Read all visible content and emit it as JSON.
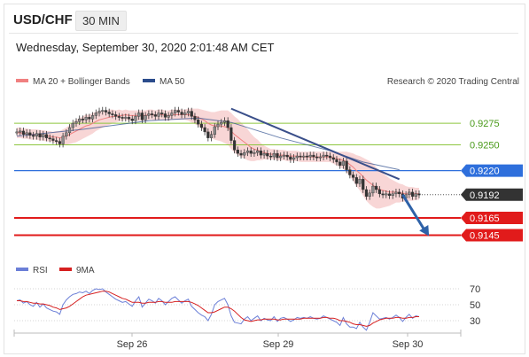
{
  "header": {
    "pair": "USD/CHF",
    "timeframe": "30 MIN",
    "datetime": "Wednesday, September 30, 2020 2:01:48 AM CET"
  },
  "legend": {
    "ma20": "MA 20 + Bollinger Bands",
    "ma50": "MA 50",
    "copyright": "Research © 2020 Trading Central",
    "rsi": "RSI",
    "ma9": "9MA"
  },
  "colors": {
    "support": "#e11b1b",
    "resistance": "#2e6fdc",
    "minor": "#8dc63f",
    "price": "#333333",
    "ma20": "#f08080",
    "ma50": "#2b4c8c",
    "band": "#f6c8c8",
    "trend": "#3a4f8a",
    "arrow": "#2e62a8",
    "rsi": "#6b7fd7",
    "ma9": "#d62020"
  },
  "chart_data": {
    "type": "line",
    "x_ticks": [
      "Sep 26",
      "Sep 29",
      "Sep 30"
    ],
    "price_range": [
      0.9128,
      0.9305
    ],
    "levels": [
      {
        "value": 0.9275,
        "label": "0.9275",
        "style": "minor-green"
      },
      {
        "value": 0.925,
        "label": "0.9250",
        "style": "minor-green"
      },
      {
        "value": 0.922,
        "label": "0.9220",
        "style": "resistance"
      },
      {
        "value": 0.9192,
        "label": "0.9192",
        "style": "current"
      },
      {
        "value": 0.9165,
        "label": "0.9165",
        "style": "support"
      },
      {
        "value": 0.9145,
        "label": "0.9145",
        "style": "support"
      }
    ],
    "price": [
      0.9265,
      0.9266,
      0.9262,
      0.9264,
      0.9261,
      0.926,
      0.9263,
      0.9259,
      0.9262,
      0.9258,
      0.9257,
      0.9255,
      0.9254,
      0.9251,
      0.926,
      0.9264,
      0.927,
      0.9275,
      0.9277,
      0.928,
      0.9279,
      0.9282,
      0.928,
      0.9284,
      0.9287,
      0.9289,
      0.929,
      0.9288,
      0.9286,
      0.9285,
      0.9283,
      0.9282,
      0.9281,
      0.9282,
      0.928,
      0.9278,
      0.9283,
      0.9287,
      0.9279,
      0.9284,
      0.9286,
      0.9285,
      0.9283,
      0.9287,
      0.9286,
      0.9282,
      0.9284,
      0.9287,
      0.929,
      0.9288,
      0.9285,
      0.9287,
      0.9289,
      0.9283,
      0.9279,
      0.9274,
      0.927,
      0.9265,
      0.9258,
      0.9262,
      0.9271,
      0.9274,
      0.9276,
      0.9278,
      0.927,
      0.9255,
      0.9244,
      0.924,
      0.9238,
      0.9241,
      0.9243,
      0.924,
      0.9241,
      0.9243,
      0.9238,
      0.924,
      0.9237,
      0.9236,
      0.924,
      0.9235,
      0.9237,
      0.9238,
      0.9236,
      0.9233,
      0.9235,
      0.9237,
      0.9236,
      0.9237,
      0.9236,
      0.9238,
      0.9236,
      0.9235,
      0.9236,
      0.9238,
      0.9237,
      0.9235,
      0.9233,
      0.923,
      0.9226,
      0.9231,
      0.9221,
      0.9215,
      0.9212,
      0.9205,
      0.921,
      0.9198,
      0.919,
      0.9194,
      0.9202,
      0.9198,
      0.9193,
      0.9192,
      0.9193,
      0.9191,
      0.9193,
      0.9195,
      0.9193,
      0.9188,
      0.9192,
      0.9195,
      0.919,
      0.9193,
      0.9192
    ],
    "ma20": [
      0.9264,
      0.9264,
      0.9263,
      0.9263,
      0.9262,
      0.9262,
      0.9262,
      0.9261,
      0.9261,
      0.926,
      0.926,
      0.9259,
      0.9259,
      0.9258,
      0.9259,
      0.926,
      0.9262,
      0.9264,
      0.9266,
      0.9268,
      0.927,
      0.9272,
      0.9273,
      0.9275,
      0.9277,
      0.9279,
      0.928,
      0.9281,
      0.9282,
      0.9283,
      0.9283,
      0.9284,
      0.9284,
      0.9285,
      0.9284,
      0.9284,
      0.9284,
      0.9284,
      0.9284,
      0.9284,
      0.9285,
      0.9285,
      0.9284,
      0.9285,
      0.9285,
      0.9284,
      0.9284,
      0.9285,
      0.9285,
      0.9285,
      0.9285,
      0.9285,
      0.9285,
      0.9284,
      0.9283,
      0.9282,
      0.928,
      0.9278,
      0.9275,
      0.9273,
      0.9272,
      0.9272,
      0.9272,
      0.9271,
      0.927,
      0.9266,
      0.9262,
      0.9259,
      0.9256,
      0.9253,
      0.925,
      0.9247,
      0.9245,
      0.9244,
      0.9242,
      0.9241,
      0.924,
      0.9239,
      0.9239,
      0.9238,
      0.9238,
      0.9238,
      0.9237,
      0.9237,
      0.9237,
      0.9237,
      0.9236,
      0.9236,
      0.9236,
      0.9236,
      0.9236,
      0.9236,
      0.9236,
      0.9236,
      0.9236,
      0.9236,
      0.9235,
      0.9234,
      0.9233,
      0.9232,
      0.923,
      0.9227,
      0.9224,
      0.922,
      0.9217,
      0.9213,
      0.9209,
      0.9206,
      0.9203,
      0.92,
      0.9198,
      0.9197,
      0.9196,
      0.9195,
      0.9195,
      0.9195,
      0.9194,
      0.9194,
      0.9193,
      0.9193,
      0.9193,
      0.9193,
      0.9193
    ],
    "band_width": [
      0.0006,
      0.0006,
      0.0006,
      0.0006,
      0.0006,
      0.0006,
      0.0006,
      0.0006,
      0.0006,
      0.0006,
      0.0006,
      0.0006,
      0.0007,
      0.0008,
      0.0009,
      0.001,
      0.0011,
      0.0012,
      0.0013,
      0.0013,
      0.0013,
      0.0013,
      0.0012,
      0.0012,
      0.0011,
      0.0011,
      0.001,
      0.0009,
      0.0009,
      0.0008,
      0.0007,
      0.0007,
      0.0006,
      0.0006,
      0.0006,
      0.0006,
      0.0006,
      0.0006,
      0.0006,
      0.0006,
      0.0006,
      0.0006,
      0.0006,
      0.0006,
      0.0006,
      0.0006,
      0.0006,
      0.0006,
      0.0006,
      0.0006,
      0.0006,
      0.0006,
      0.0007,
      0.0008,
      0.0009,
      0.001,
      0.0011,
      0.0012,
      0.0014,
      0.0015,
      0.0016,
      0.0017,
      0.0018,
      0.0019,
      0.002,
      0.0021,
      0.0021,
      0.0021,
      0.002,
      0.0019,
      0.0018,
      0.0016,
      0.0014,
      0.0012,
      0.001,
      0.0008,
      0.0007,
      0.0006,
      0.0006,
      0.0006,
      0.0006,
      0.0006,
      0.0006,
      0.0006,
      0.0006,
      0.0006,
      0.0006,
      0.0006,
      0.0006,
      0.0006,
      0.0006,
      0.0006,
      0.0006,
      0.0006,
      0.0006,
      0.0006,
      0.0007,
      0.0008,
      0.0009,
      0.001,
      0.0012,
      0.0014,
      0.0016,
      0.0018,
      0.002,
      0.0022,
      0.0024,
      0.0025,
      0.0025,
      0.0024,
      0.0022,
      0.002,
      0.0018,
      0.0016,
      0.0014,
      0.0012,
      0.0011,
      0.001,
      0.0009,
      0.0008,
      0.0008,
      0.0007,
      0.0007
    ],
    "ma50": [
      [
        0,
        0.926
      ],
      [
        20,
        0.9268
      ],
      [
        40,
        0.9278
      ],
      [
        55,
        0.9281
      ],
      [
        65,
        0.9276
      ],
      [
        80,
        0.9258
      ],
      [
        95,
        0.9243
      ],
      [
        105,
        0.923
      ],
      [
        116,
        0.9221
      ]
    ],
    "trendline": [
      [
        65,
        0.9292
      ],
      [
        116,
        0.921
      ]
    ],
    "arrow": {
      "from": [
        117,
        0.9192
      ],
      "to": [
        125,
        0.9144
      ]
    },
    "rsi": {
      "ylabels": [
        "70",
        "50",
        "30"
      ],
      "range": [
        15,
        85
      ],
      "values": [
        55,
        56,
        52,
        54,
        50,
        48,
        53,
        47,
        51,
        46,
        44,
        42,
        41,
        38,
        50,
        56,
        60,
        63,
        64,
        66,
        65,
        67,
        64,
        68,
        70,
        69,
        70,
        66,
        63,
        60,
        57,
        55,
        53,
        54,
        51,
        48,
        55,
        60,
        47,
        52,
        57,
        55,
        52,
        58,
        55,
        50,
        54,
        58,
        60,
        56,
        52,
        55,
        57,
        48,
        44,
        40,
        37,
        35,
        30,
        38,
        50,
        54,
        56,
        58,
        50,
        36,
        28,
        27,
        26,
        32,
        35,
        30,
        33,
        36,
        30,
        33,
        31,
        30,
        35,
        29,
        33,
        34,
        32,
        29,
        31,
        34,
        33,
        34,
        33,
        35,
        33,
        32,
        33,
        36,
        34,
        32,
        30,
        28,
        24,
        34,
        26,
        22,
        22,
        20,
        28,
        22,
        18,
        28,
        40,
        36,
        32,
        33,
        34,
        32,
        34,
        37,
        34,
        29,
        34,
        38,
        33,
        36,
        35
      ],
      "ma9": [
        55,
        55,
        54,
        54,
        53,
        52,
        52,
        51,
        51,
        50,
        49,
        47,
        46,
        44,
        45,
        46,
        48,
        51,
        54,
        57,
        60,
        62,
        63,
        64,
        65,
        66,
        67,
        67,
        66,
        64,
        62,
        60,
        58,
        57,
        55,
        53,
        53,
        53,
        52,
        52,
        53,
        53,
        53,
        54,
        54,
        53,
        53,
        53,
        54,
        54,
        54,
        54,
        54,
        53,
        51,
        49,
        46,
        43,
        40,
        40,
        41,
        43,
        45,
        47,
        47,
        45,
        42,
        38,
        34,
        31,
        30,
        29,
        30,
        31,
        31,
        32,
        32,
        32,
        32,
        31,
        31,
        32,
        32,
        32,
        32,
        32,
        32,
        33,
        33,
        33,
        33,
        33,
        33,
        34,
        34,
        33,
        33,
        32,
        30,
        30,
        29,
        28,
        26,
        25,
        25,
        24,
        23,
        24,
        27,
        29,
        31,
        32,
        33,
        33,
        33,
        34,
        34,
        33,
        33,
        34,
        34,
        35,
        35
      ]
    }
  }
}
